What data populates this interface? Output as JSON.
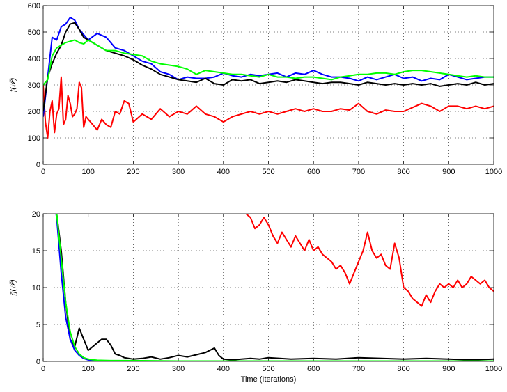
{
  "chart_data": [
    {
      "type": "line",
      "ylabel": "f(𝒫)",
      "xlabel": "",
      "xlim": [
        0,
        1000
      ],
      "ylim": [
        0,
        600
      ],
      "xticks": [
        "0",
        "100",
        "200",
        "300",
        "400",
        "500",
        "600",
        "700",
        "800",
        "900",
        "1000"
      ],
      "yticks": [
        "0",
        "100",
        "200",
        "300",
        "400",
        "500",
        "600"
      ],
      "grid": true,
      "series": [
        {
          "color": "#ff0000",
          "x": [
            0,
            5,
            10,
            15,
            20,
            25,
            30,
            35,
            40,
            45,
            50,
            55,
            60,
            65,
            70,
            75,
            80,
            85,
            90,
            95,
            100,
            110,
            120,
            130,
            140,
            150,
            160,
            170,
            180,
            190,
            200,
            220,
            240,
            260,
            280,
            300,
            320,
            340,
            360,
            380,
            400,
            420,
            440,
            460,
            480,
            500,
            520,
            540,
            560,
            580,
            600,
            620,
            640,
            660,
            680,
            700,
            720,
            740,
            760,
            780,
            800,
            820,
            840,
            860,
            880,
            900,
            920,
            940,
            960,
            980,
            1000
          ],
          "values": [
            300,
            160,
            100,
            200,
            240,
            120,
            190,
            210,
            330,
            150,
            170,
            260,
            230,
            180,
            190,
            210,
            310,
            290,
            140,
            180,
            170,
            150,
            130,
            170,
            150,
            140,
            200,
            190,
            240,
            230,
            160,
            190,
            170,
            210,
            180,
            200,
            190,
            220,
            190,
            180,
            160,
            180,
            190,
            200,
            190,
            200,
            190,
            200,
            210,
            200,
            210,
            200,
            200,
            210,
            205,
            230,
            200,
            190,
            205,
            200,
            200,
            215,
            230,
            220,
            200,
            220,
            220,
            210,
            220,
            210,
            220
          ]
        },
        {
          "color": "#0000ff",
          "x": [
            0,
            10,
            20,
            30,
            40,
            50,
            60,
            70,
            80,
            90,
            100,
            120,
            140,
            160,
            180,
            200,
            220,
            240,
            260,
            280,
            300,
            320,
            340,
            360,
            380,
            400,
            420,
            440,
            460,
            480,
            500,
            520,
            540,
            560,
            580,
            600,
            620,
            640,
            660,
            680,
            700,
            720,
            740,
            760,
            780,
            800,
            820,
            840,
            860,
            880,
            900,
            920,
            940,
            960,
            980,
            1000
          ],
          "values": [
            180,
            330,
            480,
            470,
            520,
            530,
            555,
            545,
            510,
            490,
            470,
            495,
            480,
            440,
            430,
            410,
            390,
            380,
            350,
            340,
            320,
            330,
            325,
            325,
            330,
            345,
            335,
            330,
            340,
            335,
            340,
            345,
            330,
            345,
            340,
            355,
            340,
            330,
            330,
            325,
            315,
            330,
            320,
            330,
            340,
            325,
            330,
            315,
            325,
            320,
            340,
            330,
            320,
            325,
            330,
            330
          ]
        },
        {
          "color": "#000000",
          "x": [
            0,
            10,
            20,
            30,
            40,
            50,
            60,
            70,
            80,
            90,
            100,
            120,
            140,
            160,
            180,
            200,
            220,
            240,
            260,
            280,
            300,
            320,
            340,
            360,
            380,
            400,
            420,
            440,
            460,
            480,
            500,
            520,
            540,
            560,
            580,
            600,
            620,
            640,
            660,
            680,
            700,
            720,
            740,
            760,
            780,
            800,
            820,
            840,
            860,
            880,
            900,
            920,
            940,
            960,
            980,
            1000
          ],
          "values": [
            200,
            330,
            380,
            420,
            450,
            500,
            530,
            535,
            510,
            480,
            470,
            450,
            430,
            420,
            410,
            395,
            375,
            360,
            340,
            330,
            320,
            315,
            310,
            325,
            305,
            300,
            320,
            315,
            320,
            305,
            310,
            315,
            310,
            320,
            315,
            310,
            305,
            310,
            310,
            305,
            300,
            310,
            305,
            300,
            305,
            300,
            305,
            300,
            305,
            295,
            300,
            305,
            300,
            310,
            300,
            305
          ]
        },
        {
          "color": "#00ff00",
          "x": [
            0,
            10,
            20,
            30,
            40,
            50,
            60,
            70,
            80,
            90,
            100,
            120,
            140,
            160,
            180,
            200,
            220,
            240,
            260,
            280,
            300,
            320,
            340,
            360,
            380,
            400,
            420,
            440,
            460,
            480,
            500,
            520,
            540,
            560,
            580,
            600,
            620,
            640,
            660,
            680,
            700,
            720,
            740,
            760,
            780,
            800,
            820,
            840,
            860,
            880,
            900,
            920,
            940,
            960,
            980,
            1000
          ],
          "values": [
            300,
            320,
            410,
            440,
            450,
            460,
            465,
            470,
            460,
            455,
            470,
            450,
            430,
            430,
            420,
            415,
            410,
            390,
            380,
            375,
            370,
            360,
            340,
            355,
            350,
            345,
            340,
            340,
            335,
            330,
            340,
            330,
            330,
            325,
            330,
            330,
            325,
            320,
            330,
            335,
            340,
            340,
            345,
            345,
            340,
            350,
            355,
            355,
            350,
            345,
            340,
            335,
            330,
            335,
            330,
            330
          ]
        }
      ]
    },
    {
      "type": "line",
      "ylabel": "ḡ(𝒫)",
      "xlabel": "Time (Iterations)",
      "xlim": [
        0,
        1000
      ],
      "ylim": [
        0,
        20
      ],
      "xticks": [
        "0",
        "100",
        "200",
        "300",
        "400",
        "500",
        "600",
        "700",
        "800",
        "900",
        "1000"
      ],
      "yticks": [
        "0",
        "5",
        "10",
        "15",
        "20"
      ],
      "grid": true,
      "series": [
        {
          "color": "#ff0000",
          "x": [
            450,
            460,
            470,
            480,
            490,
            500,
            510,
            520,
            530,
            540,
            550,
            560,
            570,
            580,
            590,
            600,
            610,
            620,
            630,
            640,
            650,
            660,
            670,
            680,
            690,
            700,
            710,
            720,
            730,
            740,
            750,
            760,
            770,
            780,
            790,
            800,
            810,
            820,
            830,
            840,
            850,
            860,
            870,
            880,
            890,
            900,
            910,
            920,
            930,
            940,
            950,
            960,
            970,
            980,
            990,
            1000
          ],
          "values": [
            20,
            19.5,
            18,
            18.5,
            19.5,
            18.5,
            17,
            16,
            17.5,
            16.5,
            15.5,
            17,
            16,
            15,
            16.5,
            15,
            15.5,
            14.5,
            14,
            13.5,
            12.5,
            13,
            12,
            10.5,
            12,
            13.5,
            15,
            17.5,
            15,
            14,
            14.5,
            13,
            12.5,
            16,
            14,
            10,
            9.5,
            8.5,
            8,
            7.5,
            9,
            8,
            9.5,
            10.5,
            10,
            10.5,
            10,
            11,
            10,
            10.5,
            11.5,
            11,
            10.5,
            11,
            10,
            9.5
          ]
        },
        {
          "color": "#000000",
          "x": [
            0,
            30,
            40,
            50,
            60,
            70,
            80,
            90,
            100,
            110,
            120,
            130,
            140,
            150,
            160,
            170,
            180,
            200,
            220,
            240,
            260,
            280,
            300,
            320,
            340,
            360,
            380,
            390,
            400,
            420,
            440,
            460,
            480,
            500,
            550,
            600,
            650,
            700,
            750,
            800,
            850,
            900,
            950,
            1000
          ],
          "values": [
            30,
            20,
            15,
            8,
            3,
            2,
            4.5,
            3,
            1.5,
            2,
            2.5,
            3,
            3,
            2.2,
            1,
            0.8,
            0.5,
            0.3,
            0.4,
            0.6,
            0.3,
            0.5,
            0.8,
            0.6,
            0.9,
            1.2,
            1.8,
            0.8,
            0.3,
            0.2,
            0.3,
            0.4,
            0.3,
            0.5,
            0.3,
            0.4,
            0.3,
            0.5,
            0.4,
            0.3,
            0.4,
            0.3,
            0.2,
            0.3
          ]
        },
        {
          "color": "#0000ff",
          "x": [
            0,
            30,
            40,
            50,
            60,
            70,
            80,
            90,
            100,
            120,
            150,
            200,
            300,
            400,
            500,
            600,
            700,
            800,
            900,
            1000
          ],
          "values": [
            30,
            19.5,
            12,
            6,
            3,
            1.5,
            0.8,
            0.4,
            0.2,
            0.1,
            0.05,
            0.05,
            0.05,
            0.05,
            0.05,
            0.05,
            0.05,
            0.05,
            0.05,
            0.05
          ]
        },
        {
          "color": "#00ff00",
          "x": [
            0,
            30,
            40,
            50,
            60,
            70,
            80,
            90,
            100,
            120,
            150,
            200,
            300,
            400,
            500,
            600,
            700,
            800,
            900,
            1000
          ],
          "values": [
            30,
            20,
            14,
            8,
            4,
            2,
            1,
            0.5,
            0.3,
            0.15,
            0.1,
            0.1,
            0.05,
            0.05,
            0.05,
            0.05,
            0.05,
            0.05,
            0.05,
            0.05
          ]
        }
      ]
    }
  ]
}
